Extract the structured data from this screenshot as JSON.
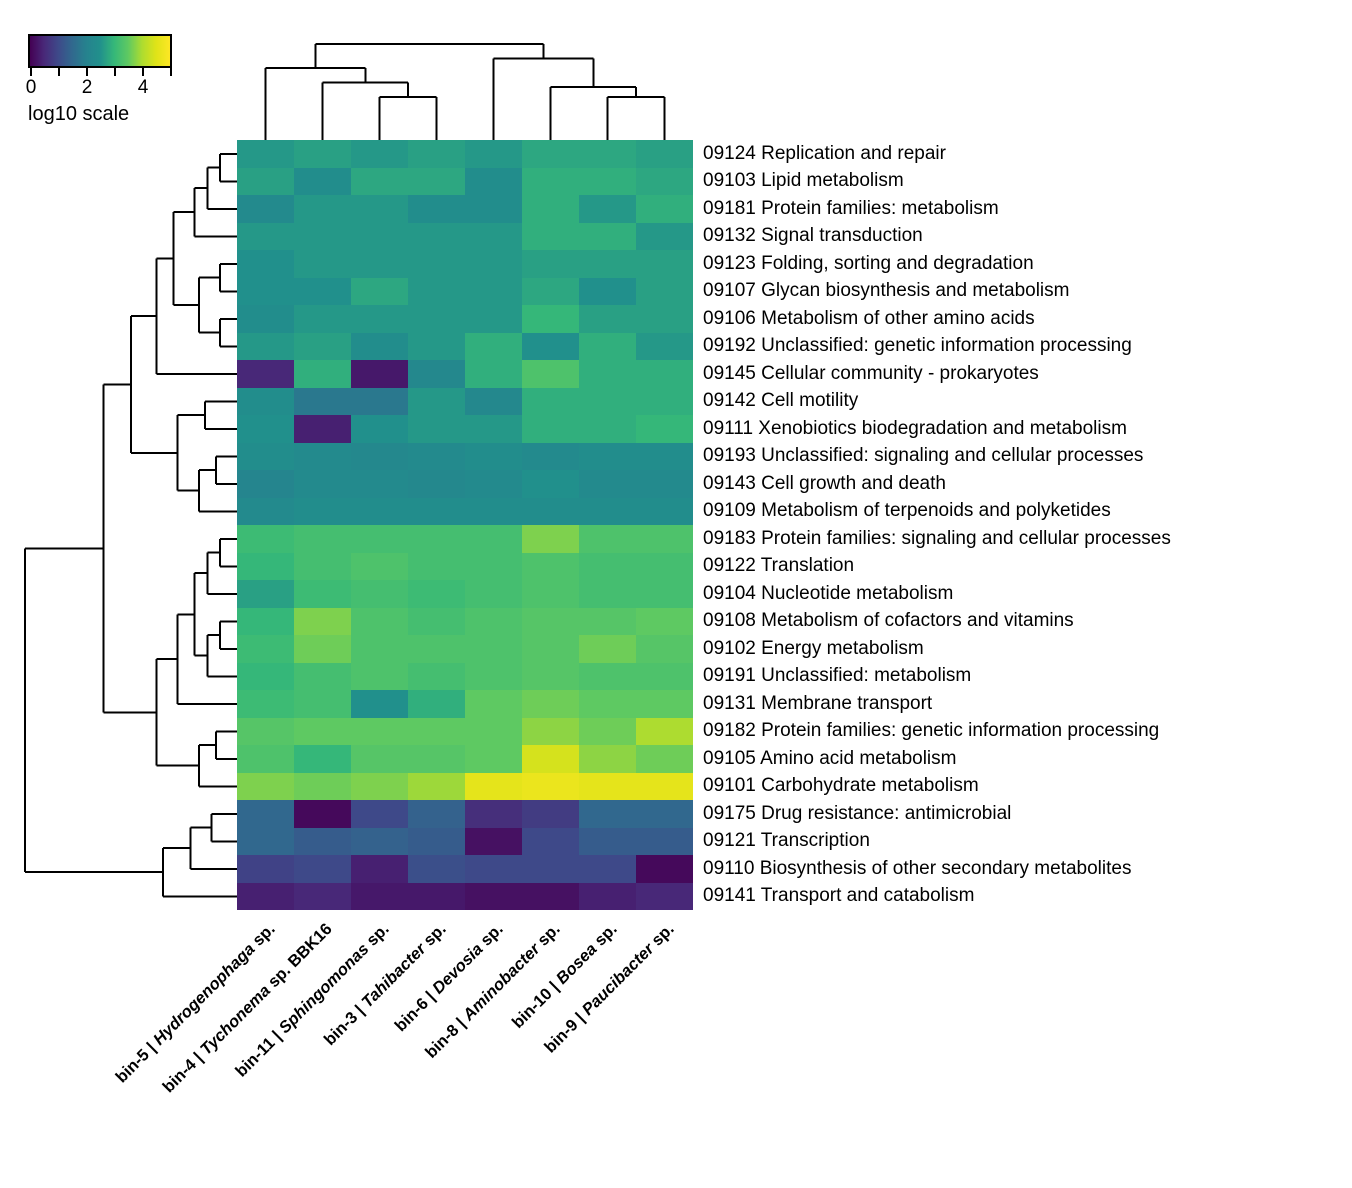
{
  "legend": {
    "title": "log10 scale",
    "tick_labels": [
      "0",
      "2",
      "4"
    ],
    "tick_values": [
      0,
      2,
      4
    ],
    "minor_tick_values": [
      1,
      3,
      5
    ],
    "domain": [
      0,
      5
    ],
    "colormap": "viridis"
  },
  "chart_data": {
    "type": "heatmap",
    "value_scale": "log10",
    "colormap": "viridis",
    "domain": [
      0,
      5
    ],
    "legend_title": "log10 scale",
    "columns": [
      {
        "prefix": "bin-5 | ",
        "genus": "Hydrogenophaga",
        "suffix": " sp."
      },
      {
        "prefix": "bin-4 | ",
        "genus": "Tychonema",
        "suffix": " sp. BBK16"
      },
      {
        "prefix": "bin-11 | ",
        "genus": "Sphingomonas",
        "suffix": " sp."
      },
      {
        "prefix": "bin-3 | ",
        "genus": "Tahibacter",
        "suffix": " sp."
      },
      {
        "prefix": "bin-6 | ",
        "genus": "Devosia",
        "suffix": " sp."
      },
      {
        "prefix": "bin-8 | ",
        "genus": "Aminobacter",
        "suffix": " sp."
      },
      {
        "prefix": "bin-10 | ",
        "genus": "Bosea",
        "suffix": " sp."
      },
      {
        "prefix": "bin-9 | ",
        "genus": "Paucibacter",
        "suffix": " sp."
      }
    ],
    "rows": [
      "09124 Replication and repair",
      "09103 Lipid metabolism",
      "09181 Protein families: metabolism",
      "09132 Signal transduction",
      "09123 Folding, sorting and degradation",
      "09107 Glycan biosynthesis and metabolism",
      "09106 Metabolism of other amino acids",
      "09192 Unclassified: genetic information processing",
      "09145 Cellular community - prokaryotes",
      "09142 Cell motility",
      "09111 Xenobiotics biodegradation and metabolism",
      "09193 Unclassified: signaling and cellular processes",
      "09143 Cell growth and death",
      "09109 Metabolism of terpenoids and polyketides",
      "09183 Protein families: signaling and cellular processes",
      "09122 Translation",
      "09104 Nucleotide metabolism",
      "09108 Metabolism of cofactors and vitamins",
      "09102 Energy metabolism",
      "09191 Unclassified: metabolism",
      "09131 Membrane transport",
      "09182 Protein families: genetic information processing",
      "09105 Amino acid metabolism",
      "09101 Carbohydrate metabolism",
      "09175 Drug resistance: antimicrobial",
      "09121 Transcription",
      "09110 Biosynthesis of other secondary metabolites",
      "09141 Transport and catabolism"
    ],
    "values": [
      [
        2.6,
        2.7,
        2.6,
        2.7,
        2.6,
        2.8,
        2.8,
        2.7
      ],
      [
        2.7,
        2.4,
        2.8,
        2.8,
        2.4,
        2.9,
        2.9,
        2.8
      ],
      [
        2.3,
        2.6,
        2.6,
        2.4,
        2.4,
        2.9,
        2.6,
        2.9
      ],
      [
        2.6,
        2.6,
        2.6,
        2.6,
        2.6,
        2.9,
        2.9,
        2.6
      ],
      [
        2.5,
        2.6,
        2.6,
        2.6,
        2.6,
        2.7,
        2.7,
        2.7
      ],
      [
        2.5,
        2.5,
        2.8,
        2.6,
        2.6,
        2.8,
        2.5,
        2.7
      ],
      [
        2.4,
        2.6,
        2.6,
        2.6,
        2.6,
        3.0,
        2.7,
        2.7
      ],
      [
        2.6,
        2.7,
        2.4,
        2.6,
        2.9,
        2.5,
        2.9,
        2.6
      ],
      [
        0.5,
        2.9,
        0.3,
        2.2,
        2.9,
        3.3,
        2.9,
        2.9
      ],
      [
        2.4,
        1.8,
        1.8,
        2.6,
        2.2,
        2.9,
        2.9,
        2.9
      ],
      [
        2.5,
        0.4,
        2.5,
        2.6,
        2.6,
        2.9,
        2.9,
        3.0
      ],
      [
        2.4,
        2.3,
        2.2,
        2.3,
        2.4,
        2.3,
        2.4,
        2.4
      ],
      [
        2.1,
        2.3,
        2.3,
        2.2,
        2.3,
        2.5,
        2.3,
        2.3
      ],
      [
        2.3,
        2.4,
        2.4,
        2.4,
        2.4,
        2.4,
        2.4,
        2.4
      ],
      [
        3.1,
        3.2,
        3.2,
        3.2,
        3.2,
        3.7,
        3.3,
        3.3
      ],
      [
        3.0,
        3.2,
        3.3,
        3.2,
        3.2,
        3.3,
        3.2,
        3.2
      ],
      [
        2.7,
        3.1,
        3.2,
        3.1,
        3.2,
        3.3,
        3.2,
        3.2
      ],
      [
        3.0,
        3.7,
        3.3,
        3.2,
        3.3,
        3.4,
        3.4,
        3.5
      ],
      [
        3.1,
        3.6,
        3.3,
        3.3,
        3.3,
        3.4,
        3.6,
        3.4
      ],
      [
        3.0,
        3.2,
        3.3,
        3.2,
        3.3,
        3.4,
        3.3,
        3.3
      ],
      [
        3.1,
        3.2,
        2.5,
        2.9,
        3.5,
        3.6,
        3.5,
        3.5
      ],
      [
        3.4,
        3.5,
        3.5,
        3.5,
        3.5,
        3.8,
        3.6,
        4.0
      ],
      [
        3.3,
        3.0,
        3.4,
        3.4,
        3.5,
        4.4,
        3.8,
        3.6
      ],
      [
        3.7,
        3.6,
        3.7,
        3.9,
        4.6,
        4.7,
        4.6,
        4.6
      ],
      [
        1.5,
        0.1,
        1.0,
        1.4,
        0.6,
        0.8,
        1.5,
        1.5
      ],
      [
        1.5,
        1.3,
        1.4,
        1.3,
        0.2,
        1.0,
        1.3,
        1.3
      ],
      [
        0.9,
        1.0,
        0.4,
        1.1,
        1.0,
        1.0,
        1.0,
        0.1
      ],
      [
        0.4,
        0.5,
        0.3,
        0.3,
        0.2,
        0.2,
        0.4,
        0.5
      ]
    ],
    "column_dendrogram": {
      "h": 1.0,
      "c": [
        {
          "h": 0.75,
          "c": [
            0,
            {
              "h": 0.6,
              "c": [
                1,
                {
                  "h": 0.45,
                  "c": [
                    2,
                    3
                  ]
                }
              ]
            }
          ]
        },
        {
          "h": 0.85,
          "c": [
            4,
            {
              "h": 0.55,
              "c": [
                5,
                {
                  "h": 0.45,
                  "c": [
                    6,
                    7
                  ]
                }
              ]
            }
          ]
        }
      ]
    },
    "row_dendrogram": {
      "h": 1.0,
      "c": [
        {
          "h": 0.63,
          "c": [
            {
              "h": 0.5,
              "c": [
                {
                  "h": 0.38,
                  "c": [
                    {
                      "h": 0.3,
                      "c": [
                        {
                          "h": 0.2,
                          "c": [
                            {
                              "h": 0.14,
                              "c": [
                                {
                                  "h": 0.08,
                                  "c": [
                                    0,
                                    1
                                  ]
                                },
                                2
                              ]
                            },
                            3
                          ]
                        },
                        {
                          "h": 0.18,
                          "c": [
                            {
                              "h": 0.08,
                              "c": [
                                4,
                                5
                              ]
                            },
                            {
                              "h": 0.08,
                              "c": [
                                6,
                                7
                              ]
                            }
                          ]
                        }
                      ]
                    },
                    8
                  ]
                },
                {
                  "h": 0.28,
                  "c": [
                    {
                      "h": 0.15,
                      "c": [
                        9,
                        10
                      ]
                    },
                    {
                      "h": 0.18,
                      "c": [
                        {
                          "h": 0.1,
                          "c": [
                            11,
                            12
                          ]
                        },
                        13
                      ]
                    }
                  ]
                }
              ]
            },
            {
              "h": 0.38,
              "c": [
                {
                  "h": 0.28,
                  "c": [
                    {
                      "h": 0.2,
                      "c": [
                        {
                          "h": 0.14,
                          "c": [
                            {
                              "h": 0.08,
                              "c": [
                                14,
                                15
                              ]
                            },
                            16
                          ]
                        },
                        {
                          "h": 0.14,
                          "c": [
                            {
                              "h": 0.08,
                              "c": [
                                17,
                                18
                              ]
                            },
                            19
                          ]
                        }
                      ]
                    },
                    20
                  ]
                },
                {
                  "h": 0.18,
                  "c": [
                    {
                      "h": 0.1,
                      "c": [
                        21,
                        22
                      ]
                    },
                    23
                  ]
                }
              ]
            }
          ]
        },
        {
          "h": 0.35,
          "c": [
            {
              "h": 0.22,
              "c": [
                {
                  "h": 0.12,
                  "c": [
                    24,
                    25
                  ]
                },
                26
              ]
            },
            27
          ]
        }
      ]
    }
  }
}
